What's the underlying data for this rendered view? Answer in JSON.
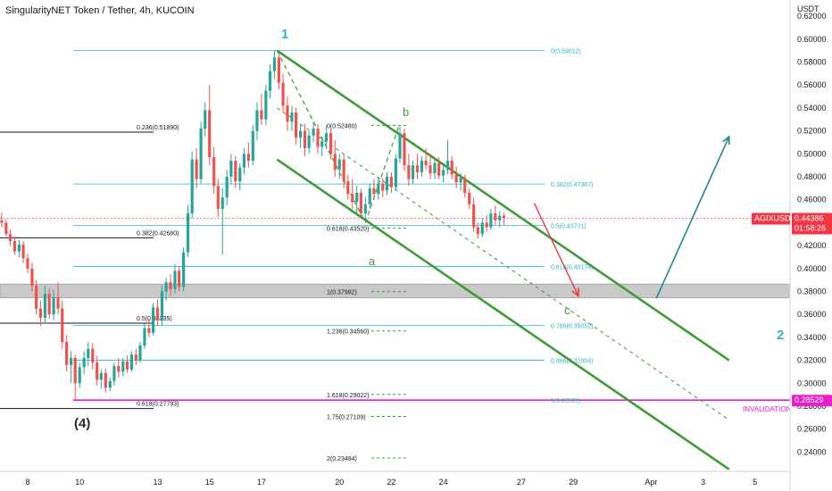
{
  "header": {
    "title": "SingularityNET Token / Tether, 4h, KUCOIN"
  },
  "price_axis": {
    "currency": "USDT",
    "ticks": [
      "0.62000",
      "0.60000",
      "0.58000",
      "0.56000",
      "0.54000",
      "0.52000",
      "0.50000",
      "0.48000",
      "0.46000",
      "0.44000",
      "0.42000",
      "0.40000",
      "0.38000",
      "0.36000",
      "0.34000",
      "0.32000",
      "0.30000",
      "0.28000",
      "0.26000",
      "0.24000"
    ],
    "tick_values": [
      0.62,
      0.6,
      0.58,
      0.56,
      0.54,
      0.52,
      0.5,
      0.48,
      0.46,
      0.44,
      0.42,
      0.4,
      0.38,
      0.36,
      0.34,
      0.32,
      0.3,
      0.28,
      0.26,
      0.24
    ],
    "symbol_badge": "AGIXUSDT",
    "price_badge": "0.44386",
    "countdown_badge": "01:58:26",
    "invalidation_badge": "0.28529",
    "colors": {
      "badge_red": "#f23645",
      "magenta": "#e91ec8"
    }
  },
  "time_axis": {
    "ticks": [
      "8",
      "10",
      "13",
      "15",
      "17",
      "20",
      "22",
      "24",
      "27",
      "29",
      "Apr",
      "3",
      "5"
    ],
    "tick_values": [
      8,
      10,
      13,
      15,
      17,
      20,
      22,
      24,
      27,
      29,
      32,
      34,
      36
    ]
  },
  "wave_labels": {
    "w1": "1",
    "w2": "2",
    "w4": "(4)",
    "a": "a",
    "b": "b",
    "c": "c"
  },
  "invalidation_text": "INVALIDATION",
  "fib_left": [
    {
      "text": "0.236(0.51890)",
      "value": 0.5189
    },
    {
      "text": "0.382(0.42680)",
      "value": 0.4268
    },
    {
      "text": "0.5(0.35235)",
      "value": 0.35235
    },
    {
      "text": "0.618(0.27793)",
      "value": 0.27793
    }
  ],
  "fib_retracement": [
    {
      "text": "0(0.59012)",
      "value": 0.59012
    },
    {
      "text": "0.382(0.47367)",
      "value": 0.47367
    },
    {
      "text": "0.5(0.43771)",
      "value": 0.43771
    },
    {
      "text": "0.618(0.40174)",
      "value": 0.40174
    },
    {
      "text": "0.786(0.35052)",
      "value": 0.35052
    },
    {
      "text": "0.886(0.32004)",
      "value": 0.32004
    },
    {
      "text": "1(0.28529)",
      "value": 0.28529
    }
  ],
  "fib_extension": [
    {
      "text": "0(0.52480)",
      "value": 0.5248
    },
    {
      "text": "0.618(0.43520)",
      "value": 0.4352
    },
    {
      "text": "1(0.37982)",
      "value": 0.37982
    },
    {
      "text": "1.236(0.34560)",
      "value": 0.3456
    },
    {
      "text": "1.618(0.29022)",
      "value": 0.29022
    },
    {
      "text": "1.75(0.27109)",
      "value": 0.27109
    },
    {
      "text": "2(0.23484)",
      "value": 0.23484
    }
  ],
  "support_zone": {
    "low": 0.3745,
    "high": 0.3865
  },
  "colors": {
    "up": "#26a69a",
    "down": "#ef5350",
    "channel": "#3d9b35",
    "fib": "#2ab7c5",
    "ext": "#3d9b35",
    "projection": "#1a8a8a",
    "zone": "#b2b2b2"
  },
  "chart_data": {
    "type": "candlestick",
    "title": "SingularityNET Token / Tether, 4h, KUCOIN",
    "xlabel": "",
    "ylabel": "USDT",
    "ylim": [
      0.22,
      0.63
    ],
    "grid": false,
    "x_unit": "day (March; 32 = Apr 1)",
    "candles": [
      {
        "t": 7.0,
        "o": 0.442,
        "h": 0.449,
        "l": 0.436,
        "c": 0.44
      },
      {
        "t": 7.17,
        "o": 0.44,
        "h": 0.443,
        "l": 0.428,
        "c": 0.43
      },
      {
        "t": 7.33,
        "o": 0.43,
        "h": 0.434,
        "l": 0.42,
        "c": 0.424
      },
      {
        "t": 7.5,
        "o": 0.424,
        "h": 0.428,
        "l": 0.412,
        "c": 0.415
      },
      {
        "t": 7.67,
        "o": 0.415,
        "h": 0.425,
        "l": 0.41,
        "c": 0.421
      },
      {
        "t": 7.83,
        "o": 0.421,
        "h": 0.424,
        "l": 0.405,
        "c": 0.409
      },
      {
        "t": 8.0,
        "o": 0.409,
        "h": 0.413,
        "l": 0.396,
        "c": 0.4
      },
      {
        "t": 8.17,
        "o": 0.4,
        "h": 0.405,
        "l": 0.38,
        "c": 0.385
      },
      {
        "t": 8.33,
        "o": 0.385,
        "h": 0.39,
        "l": 0.36,
        "c": 0.365
      },
      {
        "t": 8.5,
        "o": 0.365,
        "h": 0.372,
        "l": 0.35,
        "c": 0.357
      },
      {
        "t": 8.67,
        "o": 0.357,
        "h": 0.385,
        "l": 0.352,
        "c": 0.378
      },
      {
        "t": 8.83,
        "o": 0.378,
        "h": 0.383,
        "l": 0.356,
        "c": 0.36
      },
      {
        "t": 9.0,
        "o": 0.36,
        "h": 0.382,
        "l": 0.355,
        "c": 0.375
      },
      {
        "t": 9.17,
        "o": 0.375,
        "h": 0.388,
        "l": 0.36,
        "c": 0.365
      },
      {
        "t": 9.33,
        "o": 0.365,
        "h": 0.372,
        "l": 0.33,
        "c": 0.336
      },
      {
        "t": 9.5,
        "o": 0.336,
        "h": 0.342,
        "l": 0.31,
        "c": 0.316
      },
      {
        "t": 9.67,
        "o": 0.316,
        "h": 0.328,
        "l": 0.3,
        "c": 0.322
      },
      {
        "t": 9.83,
        "o": 0.322,
        "h": 0.325,
        "l": 0.286,
        "c": 0.3
      },
      {
        "t": 10.0,
        "o": 0.3,
        "h": 0.318,
        "l": 0.296,
        "c": 0.314
      },
      {
        "t": 10.17,
        "o": 0.314,
        "h": 0.328,
        "l": 0.308,
        "c": 0.322
      },
      {
        "t": 10.33,
        "o": 0.322,
        "h": 0.336,
        "l": 0.315,
        "c": 0.33
      },
      {
        "t": 10.5,
        "o": 0.33,
        "h": 0.335,
        "l": 0.312,
        "c": 0.318
      },
      {
        "t": 10.67,
        "o": 0.318,
        "h": 0.324,
        "l": 0.298,
        "c": 0.303
      },
      {
        "t": 10.83,
        "o": 0.303,
        "h": 0.312,
        "l": 0.295,
        "c": 0.309
      },
      {
        "t": 11.0,
        "o": 0.309,
        "h": 0.313,
        "l": 0.292,
        "c": 0.296
      },
      {
        "t": 11.17,
        "o": 0.296,
        "h": 0.305,
        "l": 0.293,
        "c": 0.302
      },
      {
        "t": 11.33,
        "o": 0.302,
        "h": 0.318,
        "l": 0.298,
        "c": 0.315
      },
      {
        "t": 11.5,
        "o": 0.315,
        "h": 0.322,
        "l": 0.305,
        "c": 0.31
      },
      {
        "t": 11.67,
        "o": 0.31,
        "h": 0.322,
        "l": 0.306,
        "c": 0.319
      },
      {
        "t": 11.83,
        "o": 0.319,
        "h": 0.324,
        "l": 0.309,
        "c": 0.312
      },
      {
        "t": 12.0,
        "o": 0.312,
        "h": 0.328,
        "l": 0.31,
        "c": 0.325
      },
      {
        "t": 12.17,
        "o": 0.325,
        "h": 0.33,
        "l": 0.316,
        "c": 0.32
      },
      {
        "t": 12.33,
        "o": 0.32,
        "h": 0.336,
        "l": 0.318,
        "c": 0.333
      },
      {
        "t": 12.5,
        "o": 0.333,
        "h": 0.352,
        "l": 0.33,
        "c": 0.348
      },
      {
        "t": 12.67,
        "o": 0.348,
        "h": 0.356,
        "l": 0.34,
        "c": 0.344
      },
      {
        "t": 12.83,
        "o": 0.344,
        "h": 0.37,
        "l": 0.342,
        "c": 0.366
      },
      {
        "t": 13.0,
        "o": 0.366,
        "h": 0.373,
        "l": 0.35,
        "c": 0.355
      },
      {
        "t": 13.17,
        "o": 0.355,
        "h": 0.385,
        "l": 0.35,
        "c": 0.38
      },
      {
        "t": 13.33,
        "o": 0.38,
        "h": 0.392,
        "l": 0.372,
        "c": 0.388
      },
      {
        "t": 13.5,
        "o": 0.388,
        "h": 0.395,
        "l": 0.376,
        "c": 0.382
      },
      {
        "t": 13.67,
        "o": 0.382,
        "h": 0.404,
        "l": 0.378,
        "c": 0.398
      },
      {
        "t": 13.83,
        "o": 0.398,
        "h": 0.402,
        "l": 0.38,
        "c": 0.384
      },
      {
        "t": 14.0,
        "o": 0.384,
        "h": 0.418,
        "l": 0.38,
        "c": 0.414
      },
      {
        "t": 14.17,
        "o": 0.414,
        "h": 0.455,
        "l": 0.41,
        "c": 0.448
      },
      {
        "t": 14.33,
        "o": 0.448,
        "h": 0.502,
        "l": 0.444,
        "c": 0.495
      },
      {
        "t": 14.5,
        "o": 0.495,
        "h": 0.505,
        "l": 0.47,
        "c": 0.478
      },
      {
        "t": 14.67,
        "o": 0.478,
        "h": 0.528,
        "l": 0.474,
        "c": 0.522
      },
      {
        "t": 14.83,
        "o": 0.522,
        "h": 0.545,
        "l": 0.515,
        "c": 0.538
      },
      {
        "t": 15.0,
        "o": 0.538,
        "h": 0.56,
        "l": 0.49,
        "c": 0.497
      },
      {
        "t": 15.17,
        "o": 0.497,
        "h": 0.506,
        "l": 0.465,
        "c": 0.472
      },
      {
        "t": 15.33,
        "o": 0.472,
        "h": 0.478,
        "l": 0.445,
        "c": 0.452
      },
      {
        "t": 15.5,
        "o": 0.452,
        "h": 0.47,
        "l": 0.412,
        "c": 0.462
      },
      {
        "t": 15.67,
        "o": 0.462,
        "h": 0.486,
        "l": 0.455,
        "c": 0.48
      },
      {
        "t": 15.83,
        "o": 0.48,
        "h": 0.5,
        "l": 0.474,
        "c": 0.494
      },
      {
        "t": 16.0,
        "o": 0.494,
        "h": 0.498,
        "l": 0.47,
        "c": 0.476
      },
      {
        "t": 16.17,
        "o": 0.476,
        "h": 0.492,
        "l": 0.468,
        "c": 0.488
      },
      {
        "t": 16.33,
        "o": 0.488,
        "h": 0.505,
        "l": 0.482,
        "c": 0.5
      },
      {
        "t": 16.5,
        "o": 0.5,
        "h": 0.51,
        "l": 0.488,
        "c": 0.494
      },
      {
        "t": 16.67,
        "o": 0.494,
        "h": 0.525,
        "l": 0.49,
        "c": 0.52
      },
      {
        "t": 16.83,
        "o": 0.52,
        "h": 0.545,
        "l": 0.512,
        "c": 0.538
      },
      {
        "t": 17.0,
        "o": 0.538,
        "h": 0.552,
        "l": 0.525,
        "c": 0.53
      },
      {
        "t": 17.17,
        "o": 0.53,
        "h": 0.56,
        "l": 0.525,
        "c": 0.555
      },
      {
        "t": 17.33,
        "o": 0.555,
        "h": 0.578,
        "l": 0.548,
        "c": 0.572
      },
      {
        "t": 17.5,
        "o": 0.572,
        "h": 0.59,
        "l": 0.565,
        "c": 0.584
      },
      {
        "t": 17.67,
        "o": 0.584,
        "h": 0.588,
        "l": 0.556,
        "c": 0.562
      },
      {
        "t": 17.83,
        "o": 0.562,
        "h": 0.57,
        "l": 0.536,
        "c": 0.542
      },
      {
        "t": 18.0,
        "o": 0.542,
        "h": 0.55,
        "l": 0.52,
        "c": 0.528
      },
      {
        "t": 18.17,
        "o": 0.528,
        "h": 0.542,
        "l": 0.52,
        "c": 0.536
      },
      {
        "t": 18.33,
        "o": 0.536,
        "h": 0.54,
        "l": 0.508,
        "c": 0.514
      },
      {
        "t": 18.5,
        "o": 0.514,
        "h": 0.526,
        "l": 0.505,
        "c": 0.52
      },
      {
        "t": 18.67,
        "o": 0.52,
        "h": 0.526,
        "l": 0.498,
        "c": 0.505
      },
      {
        "t": 18.83,
        "o": 0.505,
        "h": 0.52,
        "l": 0.5,
        "c": 0.516
      },
      {
        "t": 19.0,
        "o": 0.516,
        "h": 0.528,
        "l": 0.51,
        "c": 0.522
      },
      {
        "t": 19.17,
        "o": 0.522,
        "h": 0.526,
        "l": 0.5,
        "c": 0.506
      },
      {
        "t": 19.33,
        "o": 0.506,
        "h": 0.515,
        "l": 0.498,
        "c": 0.511
      },
      {
        "t": 19.5,
        "o": 0.511,
        "h": 0.525,
        "l": 0.504,
        "c": 0.518
      },
      {
        "t": 19.67,
        "o": 0.518,
        "h": 0.522,
        "l": 0.495,
        "c": 0.5
      },
      {
        "t": 19.83,
        "o": 0.5,
        "h": 0.512,
        "l": 0.48,
        "c": 0.486
      },
      {
        "t": 20.0,
        "o": 0.486,
        "h": 0.5,
        "l": 0.478,
        "c": 0.495
      },
      {
        "t": 20.17,
        "o": 0.495,
        "h": 0.5,
        "l": 0.47,
        "c": 0.476
      },
      {
        "t": 20.33,
        "o": 0.476,
        "h": 0.482,
        "l": 0.46,
        "c": 0.465
      },
      {
        "t": 20.5,
        "o": 0.465,
        "h": 0.478,
        "l": 0.452,
        "c": 0.458
      },
      {
        "t": 20.67,
        "o": 0.458,
        "h": 0.472,
        "l": 0.446,
        "c": 0.466
      },
      {
        "t": 20.83,
        "o": 0.466,
        "h": 0.47,
        "l": 0.444,
        "c": 0.448
      },
      {
        "t": 21.0,
        "o": 0.448,
        "h": 0.462,
        "l": 0.442,
        "c": 0.456
      },
      {
        "t": 21.17,
        "o": 0.456,
        "h": 0.474,
        "l": 0.452,
        "c": 0.47
      },
      {
        "t": 21.33,
        "o": 0.47,
        "h": 0.478,
        "l": 0.46,
        "c": 0.465
      },
      {
        "t": 21.5,
        "o": 0.465,
        "h": 0.48,
        "l": 0.46,
        "c": 0.474
      },
      {
        "t": 21.67,
        "o": 0.474,
        "h": 0.479,
        "l": 0.462,
        "c": 0.468
      },
      {
        "t": 21.83,
        "o": 0.468,
        "h": 0.484,
        "l": 0.464,
        "c": 0.48
      },
      {
        "t": 22.0,
        "o": 0.48,
        "h": 0.484,
        "l": 0.466,
        "c": 0.471
      },
      {
        "t": 22.17,
        "o": 0.471,
        "h": 0.5,
        "l": 0.468,
        "c": 0.496
      },
      {
        "t": 22.33,
        "o": 0.496,
        "h": 0.524,
        "l": 0.492,
        "c": 0.518
      },
      {
        "t": 22.5,
        "o": 0.518,
        "h": 0.522,
        "l": 0.485,
        "c": 0.49
      },
      {
        "t": 22.67,
        "o": 0.49,
        "h": 0.5,
        "l": 0.472,
        "c": 0.478
      },
      {
        "t": 22.83,
        "o": 0.478,
        "h": 0.494,
        "l": 0.474,
        "c": 0.49
      },
      {
        "t": 23.0,
        "o": 0.49,
        "h": 0.5,
        "l": 0.478,
        "c": 0.484
      },
      {
        "t": 23.17,
        "o": 0.484,
        "h": 0.498,
        "l": 0.48,
        "c": 0.494
      },
      {
        "t": 23.33,
        "o": 0.494,
        "h": 0.505,
        "l": 0.486,
        "c": 0.49
      },
      {
        "t": 23.5,
        "o": 0.49,
        "h": 0.5,
        "l": 0.478,
        "c": 0.483
      },
      {
        "t": 23.67,
        "o": 0.483,
        "h": 0.496,
        "l": 0.478,
        "c": 0.492
      },
      {
        "t": 23.83,
        "o": 0.492,
        "h": 0.497,
        "l": 0.478,
        "c": 0.481
      },
      {
        "t": 24.0,
        "o": 0.481,
        "h": 0.49,
        "l": 0.475,
        "c": 0.486
      },
      {
        "t": 24.17,
        "o": 0.486,
        "h": 0.512,
        "l": 0.482,
        "c": 0.494
      },
      {
        "t": 24.33,
        "o": 0.494,
        "h": 0.498,
        "l": 0.478,
        "c": 0.482
      },
      {
        "t": 24.5,
        "o": 0.482,
        "h": 0.489,
        "l": 0.47,
        "c": 0.475
      },
      {
        "t": 24.67,
        "o": 0.475,
        "h": 0.483,
        "l": 0.468,
        "c": 0.479
      },
      {
        "t": 24.83,
        "o": 0.479,
        "h": 0.482,
        "l": 0.462,
        "c": 0.466
      },
      {
        "t": 25.0,
        "o": 0.466,
        "h": 0.47,
        "l": 0.452,
        "c": 0.456
      },
      {
        "t": 25.17,
        "o": 0.456,
        "h": 0.462,
        "l": 0.432,
        "c": 0.436
      },
      {
        "t": 25.33,
        "o": 0.436,
        "h": 0.44,
        "l": 0.426,
        "c": 0.43
      },
      {
        "t": 25.5,
        "o": 0.43,
        "h": 0.444,
        "l": 0.427,
        "c": 0.44
      },
      {
        "t": 25.67,
        "o": 0.44,
        "h": 0.446,
        "l": 0.432,
        "c": 0.436
      },
      {
        "t": 25.83,
        "o": 0.436,
        "h": 0.452,
        "l": 0.434,
        "c": 0.448
      },
      {
        "t": 26.0,
        "o": 0.448,
        "h": 0.455,
        "l": 0.438,
        "c": 0.442
      },
      {
        "t": 26.17,
        "o": 0.442,
        "h": 0.45,
        "l": 0.436,
        "c": 0.446
      },
      {
        "t": 26.33,
        "o": 0.446,
        "h": 0.449,
        "l": 0.438,
        "c": 0.444
      }
    ],
    "lines": {
      "channel_upper": [
        [
          17.6,
          0.59
        ],
        [
          35.0,
          0.32
        ]
      ],
      "channel_lower": [
        [
          17.6,
          0.495
        ],
        [
          35.0,
          0.225
        ]
      ],
      "midline_dashed": [
        [
          17.6,
          0.54
        ],
        [
          35.0,
          0.268
        ]
      ],
      "path_1_to_a": [
        [
          17.6,
          0.59
        ],
        [
          21.0,
          0.44
        ]
      ],
      "path_a_to_b": [
        [
          21.0,
          0.44
        ],
        [
          22.3,
          0.525
        ]
      ],
      "path_b_to_c": [
        [
          27.5,
          0.457
        ],
        [
          29.2,
          0.376
        ]
      ],
      "wave_2_projection": [
        [
          32.2,
          0.374
        ],
        [
          35.0,
          0.515
        ]
      ]
    }
  }
}
